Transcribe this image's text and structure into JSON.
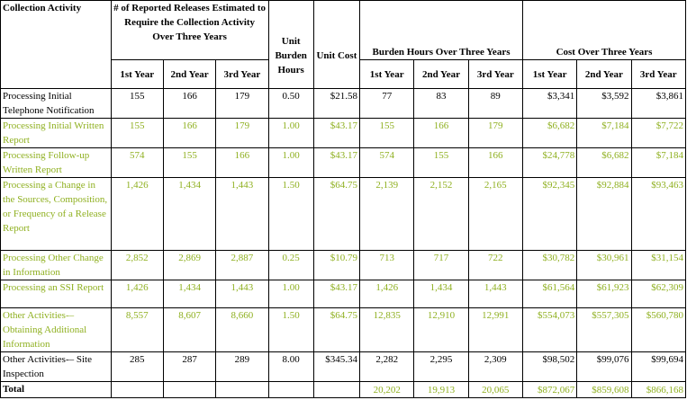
{
  "header": {
    "activity": "Collection Activity",
    "releases_group": "# of Reported Releases Estimated to Require the Collection Activity Over Three Years",
    "unit_burden": "Unit Burden Hours",
    "unit_cost": "Unit Cost",
    "burden_group": "Burden Hours Over Three Years",
    "cost_group": "Cost Over Three Years",
    "years": [
      "1st Year",
      "2nd Year",
      "3rd Year"
    ]
  },
  "rows": [
    {
      "activity": "Processing Initial Telephone Notification",
      "r1": "155",
      "r2": "166",
      "r3": "179",
      "ub": "0.50",
      "uc": "$21.58",
      "b1": "77",
      "b2": "83",
      "b3": "89",
      "c1": "$3,341",
      "c2": "$3,592",
      "c3": "$3,861",
      "green": false
    },
    {
      "activity": "Processing Initial Written Report",
      "r1": "155",
      "r2": "166",
      "r3": "179",
      "ub": "1.00",
      "uc": "$43.17",
      "b1": "155",
      "b2": "166",
      "b3": "179",
      "c1": "$6,682",
      "c2": "$7,184",
      "c3": "$7,722",
      "green": true
    },
    {
      "activity": "Processing Follow-up Written Report",
      "r1": "574",
      "r2": "155",
      "r3": "166",
      "ub": "1.00",
      "uc": "$43.17",
      "b1": "574",
      "b2": "155",
      "b3": "166",
      "c1": "$24,778",
      "c2": "$6,682",
      "c3": "$7,184",
      "green": true
    },
    {
      "activity": "Processing a Change in the Sources, Composition, or Frequency of a Release Report",
      "r1": "1,426",
      "r2": "1,434",
      "r3": "1,443",
      "ub": "1.50",
      "uc": "$64.75",
      "b1": "2,139",
      "b2": "2,152",
      "b3": "2,165",
      "c1": "$92,345",
      "c2": "$92,884",
      "c3": "$93,463",
      "green": true
    },
    {
      "activity": "Processing Other Change in Information",
      "r1": "2,852",
      "r2": "2,869",
      "r3": "2,887",
      "ub": "0.25",
      "uc": "$10.79",
      "b1": "713",
      "b2": "717",
      "b3": "722",
      "c1": "$30,782",
      "c2": "$30,961",
      "c3": "$31,154",
      "green": true
    },
    {
      "activity": "Processing an SSI Report",
      "r1": "1,426",
      "r2": "1,434",
      "r3": "1,443",
      "ub": "1.00",
      "uc": "$43.17",
      "b1": "1,426",
      "b2": "1,434",
      "b3": "1,443",
      "c1": "$61,564",
      "c2": "$61,923",
      "c3": "$62,309",
      "green": true
    },
    {
      "activity": "Other Activities-–Obtaining Additional Information",
      "r1": "8,557",
      "r2": "8,607",
      "r3": "8,660",
      "ub": "1.50",
      "uc": "$64.75",
      "b1": "12,835",
      "b2": "12,910",
      "b3": "12,991",
      "c1": "$554,073",
      "c2": "$557,305",
      "c3": "$560,780",
      "green": true
    },
    {
      "activity": "Other Activities-– Site Inspection",
      "r1": "285",
      "r2": "287",
      "r3": "289",
      "ub": "8.00",
      "uc": "$345.34",
      "b1": "2,282",
      "b2": "2,295",
      "b3": "2,309",
      "c1": "$98,502",
      "c2": "$99,076",
      "c3": "$99,694",
      "green": false
    }
  ],
  "total": {
    "label": "Total",
    "b1": "20,202",
    "b2": "19,913",
    "b3": "20,065",
    "c1": "$872,067",
    "c2": "$859,608",
    "c3": "$866,168"
  },
  "colors": {
    "highlight_text": "#8fb020",
    "text": "#000000",
    "border": "#000000"
  }
}
